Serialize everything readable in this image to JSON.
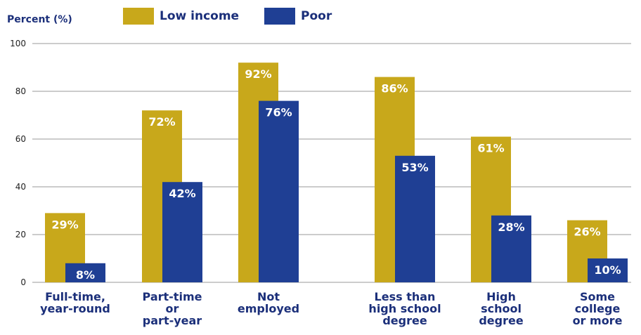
{
  "chart_data": {
    "type": "bar",
    "ylabel": "Percent (%)",
    "ylim": [
      0,
      100
    ],
    "yticks": [
      0,
      20,
      40,
      60,
      80,
      100
    ],
    "grid": true,
    "legend_position": "top",
    "categories": [
      [
        "Full-time,",
        "year-round"
      ],
      [
        "Part-time",
        "or",
        "part-year"
      ],
      [
        "Not",
        "employed"
      ],
      [
        "Less than",
        "high school",
        "degree"
      ],
      [
        "High",
        "school",
        "degree"
      ],
      [
        "Some",
        "college",
        "or more"
      ]
    ],
    "series": [
      {
        "name": "Low income",
        "color": "#c8a81b",
        "values": [
          29,
          72,
          92,
          86,
          61,
          26
        ],
        "labels": [
          "29%",
          "72%",
          "92%",
          "86%",
          "61%",
          "26%"
        ]
      },
      {
        "name": "Poor",
        "color": "#1f3f94",
        "values": [
          8,
          42,
          76,
          53,
          28,
          10
        ],
        "labels": [
          "8%",
          "42%",
          "76%",
          "53%",
          "28%",
          "10%"
        ]
      }
    ]
  }
}
